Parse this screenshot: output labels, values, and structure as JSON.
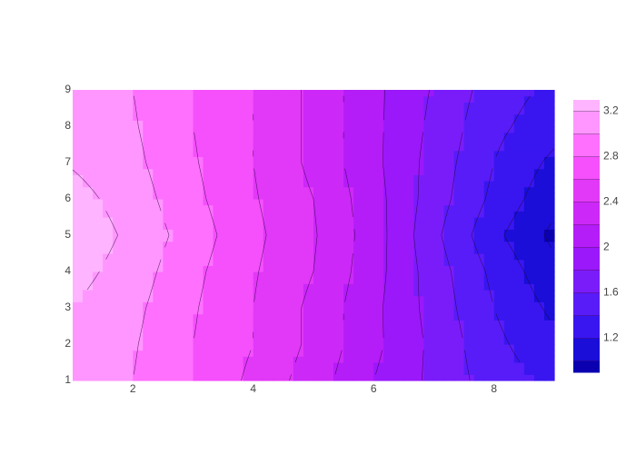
{
  "chart_data": {
    "type": "contour",
    "x": [
      1,
      2,
      3,
      4,
      5,
      6,
      7,
      8,
      9
    ],
    "y": [
      1,
      2,
      3,
      4,
      5,
      6,
      7,
      8,
      9
    ],
    "z": [
      [
        3.05,
        3.0,
        2.8,
        2.55,
        2.3,
        2.0,
        1.75,
        1.5,
        1.35
      ],
      [
        3.1,
        3.02,
        2.8,
        2.6,
        2.35,
        2.05,
        1.75,
        1.45,
        1.25
      ],
      [
        3.2,
        3.05,
        2.82,
        2.6,
        2.35,
        2.05,
        1.72,
        1.4,
        1.15
      ],
      [
        3.28,
        3.1,
        2.85,
        2.62,
        2.4,
        2.08,
        1.7,
        1.35,
        1.05
      ],
      [
        3.35,
        3.15,
        2.9,
        2.65,
        2.42,
        2.1,
        1.65,
        1.25,
        0.95
      ],
      [
        3.28,
        3.1,
        2.85,
        2.62,
        2.4,
        2.08,
        1.7,
        1.35,
        1.05
      ],
      [
        3.18,
        3.05,
        2.82,
        2.6,
        2.35,
        2.05,
        1.72,
        1.4,
        1.15
      ],
      [
        3.12,
        3.02,
        2.8,
        2.6,
        2.35,
        2.05,
        1.75,
        1.45,
        1.28
      ],
      [
        3.1,
        3.0,
        2.8,
        2.6,
        2.35,
        2.05,
        1.78,
        1.5,
        1.35
      ]
    ],
    "contours": {
      "start": 1.0,
      "end": 3.2,
      "size": 0.2
    },
    "colors": [
      "#0a00b0",
      "#1a0ed8",
      "#3916f0",
      "#581cf8",
      "#7a1cfa",
      "#9a18fa",
      "#b41cf8",
      "#cc28f8",
      "#e238f8",
      "#f550fc",
      "#ff70ff",
      "#ff96ff",
      "#ffb4ff"
    ],
    "xlim": [
      1,
      9
    ],
    "ylim": [
      1,
      9
    ],
    "xticks": [
      2,
      4,
      6,
      8
    ],
    "yticks": [
      1,
      2,
      3,
      4,
      5,
      6,
      7,
      8,
      9
    ],
    "zlim": [
      0.9,
      3.3
    ],
    "zticks": [
      1.2,
      1.6,
      2,
      2.4,
      2.8,
      3.2
    ]
  }
}
